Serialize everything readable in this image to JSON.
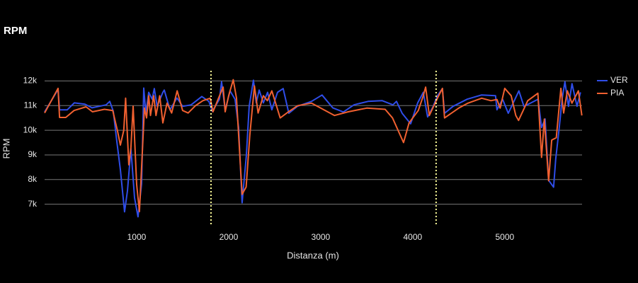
{
  "chart_data": {
    "type": "line",
    "title": "RPM",
    "x_label": "Distanza (m)",
    "y_label": "RPM",
    "xlim": [
      0,
      5840
    ],
    "ylim": [
      6100,
      12500
    ],
    "xticks": [
      1000,
      2000,
      3000,
      4000,
      5000
    ],
    "yticks": [
      {
        "value": 7000,
        "label": "7k"
      },
      {
        "value": 8000,
        "label": "8k"
      },
      {
        "value": 9000,
        "label": "9k"
      },
      {
        "value": 10000,
        "label": "10k"
      },
      {
        "value": 11000,
        "label": "11k"
      },
      {
        "value": 12000,
        "label": "12k"
      }
    ],
    "grid": true,
    "legend": "right",
    "vlines": [
      1808,
      4254
    ],
    "vline_color": "#ffff99",
    "series": [
      {
        "name": "VER",
        "color": "#2f4de8",
        "x": [
          0,
          146,
          162,
          246,
          323,
          438,
          515,
          669,
          708,
          746,
          785,
          823,
          869,
          900,
          938,
          977,
          1015,
          1054,
          1077,
          1100,
          1131,
          1169,
          1192,
          1223,
          1285,
          1300,
          1362,
          1438,
          1500,
          1592,
          1708,
          1785,
          1823,
          1900,
          1923,
          1962,
          2015,
          2069,
          2108,
          2146,
          2192,
          2223,
          2269,
          2300,
          2331,
          2377,
          2423,
          2469,
          2531,
          2592,
          2654,
          2746,
          2900,
          3015,
          3131,
          3246,
          3362,
          3515,
          3669,
          3785,
          3823,
          3885,
          3977,
          4054,
          4115,
          4162,
          4223,
          4269,
          4323,
          4346,
          4438,
          4592,
          4746,
          4900,
          4915,
          4977,
          5038,
          5092,
          5154,
          5208,
          5285,
          5362,
          5400,
          5438,
          5477,
          5531,
          5554,
          5592,
          5623,
          5654,
          5692,
          5731,
          5785,
          5823
        ],
        "values": [
          10740,
          11660,
          10830,
          10830,
          11110,
          11060,
          10910,
          11030,
          11170,
          10770,
          9540,
          8400,
          6690,
          7540,
          9260,
          7260,
          6490,
          7830,
          11710,
          10690,
          11540,
          11260,
          11690,
          10970,
          11540,
          11630,
          10830,
          11310,
          10970,
          11030,
          11370,
          11170,
          10770,
          11260,
          11970,
          10830,
          11600,
          11260,
          10110,
          7060,
          8970,
          10970,
          12030,
          11110,
          11630,
          11110,
          11540,
          10830,
          11540,
          11690,
          10690,
          10970,
          11170,
          11430,
          10910,
          10740,
          11030,
          11170,
          11200,
          11030,
          11170,
          10690,
          10260,
          11110,
          11540,
          10540,
          10970,
          11400,
          11690,
          10690,
          10970,
          11260,
          11430,
          11400,
          10830,
          11260,
          10690,
          11110,
          11600,
          10970,
          11110,
          11260,
          10110,
          10460,
          7970,
          7690,
          8830,
          10110,
          11260,
          11970,
          10970,
          11890,
          10970,
          11540
        ]
      },
      {
        "name": "PIA",
        "color": "#f06030",
        "x": [
          0,
          146,
          162,
          230,
          320,
          450,
          520,
          650,
          740,
          790,
          823,
          860,
          880,
          915,
          938,
          962,
          1000,
          1030,
          1060,
          1085,
          1108,
          1131,
          1150,
          1185,
          1210,
          1250,
          1285,
          1330,
          1380,
          1440,
          1500,
          1560,
          1640,
          1720,
          1800,
          1830,
          1890,
          1940,
          1962,
          2000,
          2050,
          2085,
          2110,
          2146,
          2190,
          2230,
          2280,
          2320,
          2377,
          2420,
          2469,
          2560,
          2650,
          2750,
          2900,
          3000,
          3150,
          3300,
          3500,
          3700,
          3780,
          3900,
          3960,
          4060,
          4115,
          4140,
          4180,
          4269,
          4323,
          4346,
          4500,
          4600,
          4750,
          4850,
          4915,
          4950,
          5000,
          5070,
          5120,
          5150,
          5250,
          5360,
          5400,
          5430,
          5477,
          5510,
          5560,
          5610,
          5640,
          5680,
          5730,
          5800,
          5838
        ],
        "values": [
          10700,
          11700,
          10520,
          10520,
          10800,
          10950,
          10750,
          10850,
          10800,
          10000,
          9400,
          10000,
          11300,
          8600,
          9300,
          10980,
          7800,
          6700,
          9000,
          10900,
          10500,
          11400,
          10600,
          11400,
          10600,
          11400,
          10300,
          11100,
          10700,
          11600,
          10800,
          10700,
          11000,
          11200,
          11300,
          10750,
          11300,
          11750,
          10750,
          11400,
          12050,
          11300,
          9700,
          7400,
          7700,
          9800,
          11800,
          10700,
          11400,
          11200,
          11600,
          10500,
          10750,
          11000,
          11100,
          10900,
          10600,
          10750,
          10900,
          10850,
          10500,
          9500,
          10300,
          10800,
          11400,
          11750,
          10600,
          11300,
          11700,
          10500,
          10900,
          11100,
          11300,
          11200,
          11250,
          10900,
          11700,
          11400,
          10600,
          10400,
          11200,
          11500,
          8900,
          10450,
          7950,
          9600,
          9700,
          11700,
          10700,
          11600,
          11100,
          11600,
          10600
        ]
      }
    ]
  }
}
